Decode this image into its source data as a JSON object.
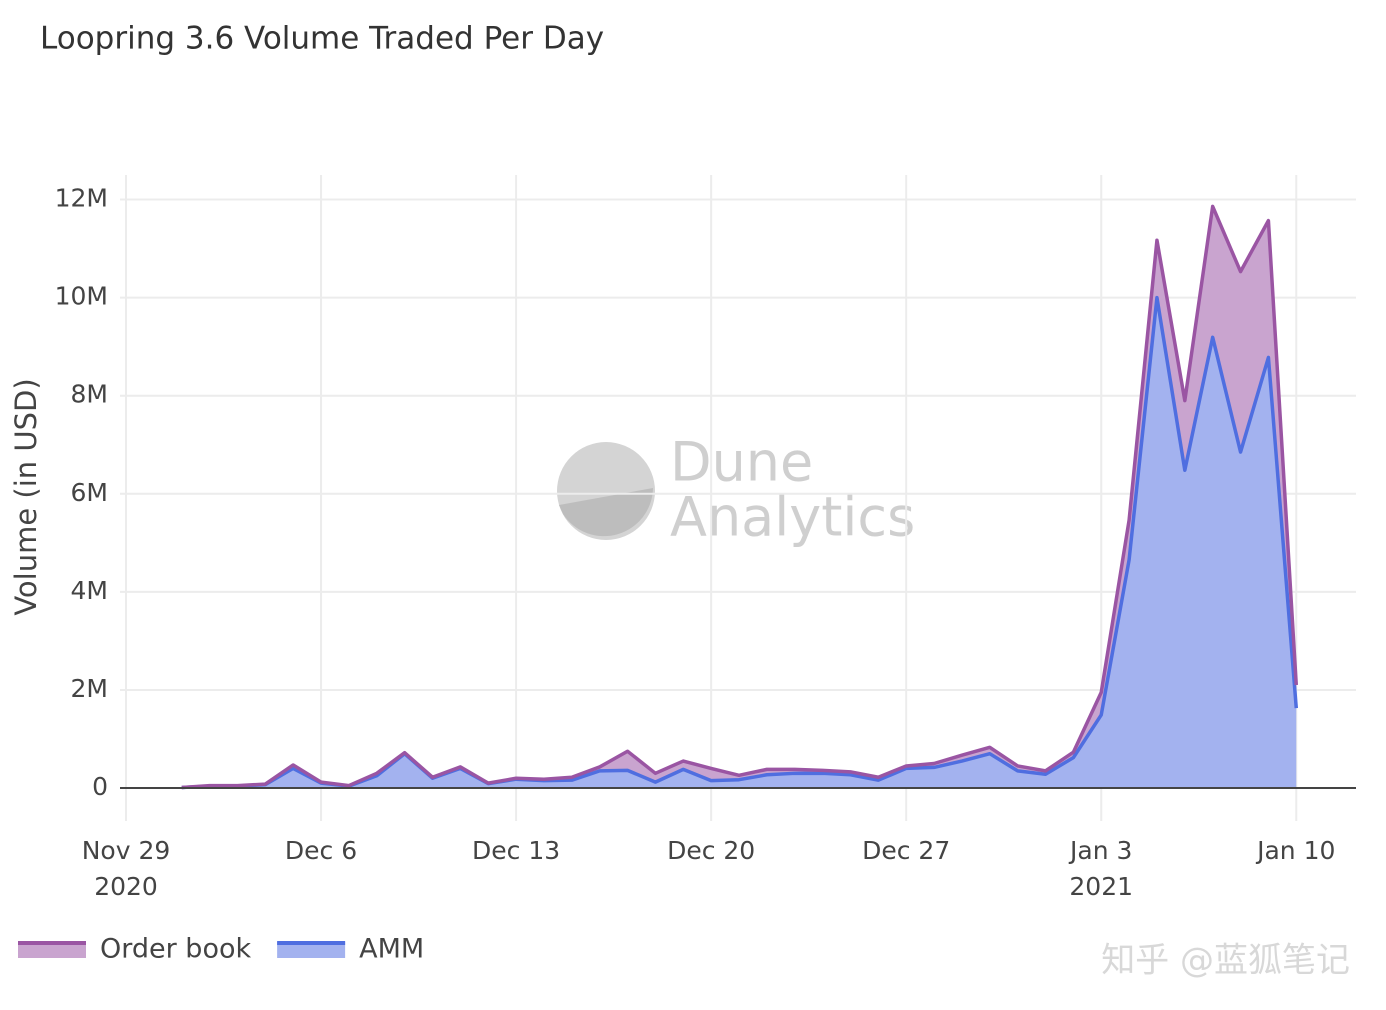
{
  "chart_data": {
    "type": "stacked_area",
    "title": "Loopring 3.6 Volume Traded Per Day",
    "y_label": "Volume (in USD)",
    "watermark": [
      "Dune",
      "Analytics"
    ],
    "credit": "知乎 @蓝狐笔记",
    "x": [
      "2020-12-01",
      "2020-12-02",
      "2020-12-03",
      "2020-12-04",
      "2020-12-05",
      "2020-12-06",
      "2020-12-07",
      "2020-12-08",
      "2020-12-09",
      "2020-12-10",
      "2020-12-11",
      "2020-12-12",
      "2020-12-13",
      "2020-12-14",
      "2020-12-15",
      "2020-12-16",
      "2020-12-17",
      "2020-12-18",
      "2020-12-19",
      "2020-12-20",
      "2020-12-21",
      "2020-12-22",
      "2020-12-23",
      "2020-12-24",
      "2020-12-25",
      "2020-12-26",
      "2020-12-27",
      "2020-12-28",
      "2020-12-29",
      "2020-12-30",
      "2020-12-31",
      "2021-01-01",
      "2021-01-02",
      "2021-01-03",
      "2021-01-04",
      "2021-01-05",
      "2021-01-06",
      "2021-01-07",
      "2021-01-08",
      "2021-01-09",
      "2021-01-10"
    ],
    "series": [
      {
        "name": "AMM",
        "color": "#4f6ee0",
        "fill": "#a3b2ef",
        "values": [
          10000,
          40000,
          40000,
          70000,
          400000,
          100000,
          40000,
          250000,
          700000,
          200000,
          400000,
          90000,
          180000,
          150000,
          160000,
          350000,
          360000,
          120000,
          380000,
          150000,
          170000,
          270000,
          300000,
          300000,
          270000,
          160000,
          400000,
          420000,
          550000,
          700000,
          350000,
          280000,
          620000,
          1490000,
          4650000,
          10000000,
          6480000,
          9190000,
          6850000,
          8780000,
          1630000
        ]
      },
      {
        "name": "Order book",
        "color": "#9a55a3",
        "fill": "#c9a4cf",
        "values": [
          0,
          10000,
          10000,
          10000,
          70000,
          20000,
          10000,
          50000,
          20000,
          20000,
          30000,
          10000,
          20000,
          30000,
          60000,
          80000,
          390000,
          180000,
          170000,
          250000,
          90000,
          110000,
          80000,
          60000,
          60000,
          60000,
          50000,
          80000,
          120000,
          130000,
          100000,
          70000,
          110000,
          460000,
          810000,
          1170000,
          1420000,
          2670000,
          3680000,
          2790000,
          470000
        ]
      }
    ],
    "legend_order": [
      "Order book",
      "AMM"
    ],
    "xlim": [
      "2020-11-29",
      "2021-01-12"
    ],
    "xticks": [
      {
        "value": "2020-11-29",
        "label": "Nov 29\n2020"
      },
      {
        "value": "2020-12-06",
        "label": "Dec 6"
      },
      {
        "value": "2020-12-13",
        "label": "Dec 13"
      },
      {
        "value": "2020-12-20",
        "label": "Dec 20"
      },
      {
        "value": "2020-12-27",
        "label": "Dec 27"
      },
      {
        "value": "2021-01-03",
        "label": "Jan 3\n2021"
      },
      {
        "value": "2021-01-10",
        "label": "Jan 10"
      }
    ],
    "ylim": [
      -550000,
      12500000
    ],
    "yticks": [
      0,
      {
        "value": 2000000,
        "label": "2M"
      },
      {
        "value": 4000000,
        "label": "4M"
      },
      {
        "value": 6000000,
        "label": "6M"
      },
      {
        "value": 8000000,
        "label": "8M"
      },
      {
        "value": 10000000,
        "label": "10M"
      },
      {
        "value": 12000000,
        "label": "12M"
      }
    ],
    "grid": true
  }
}
